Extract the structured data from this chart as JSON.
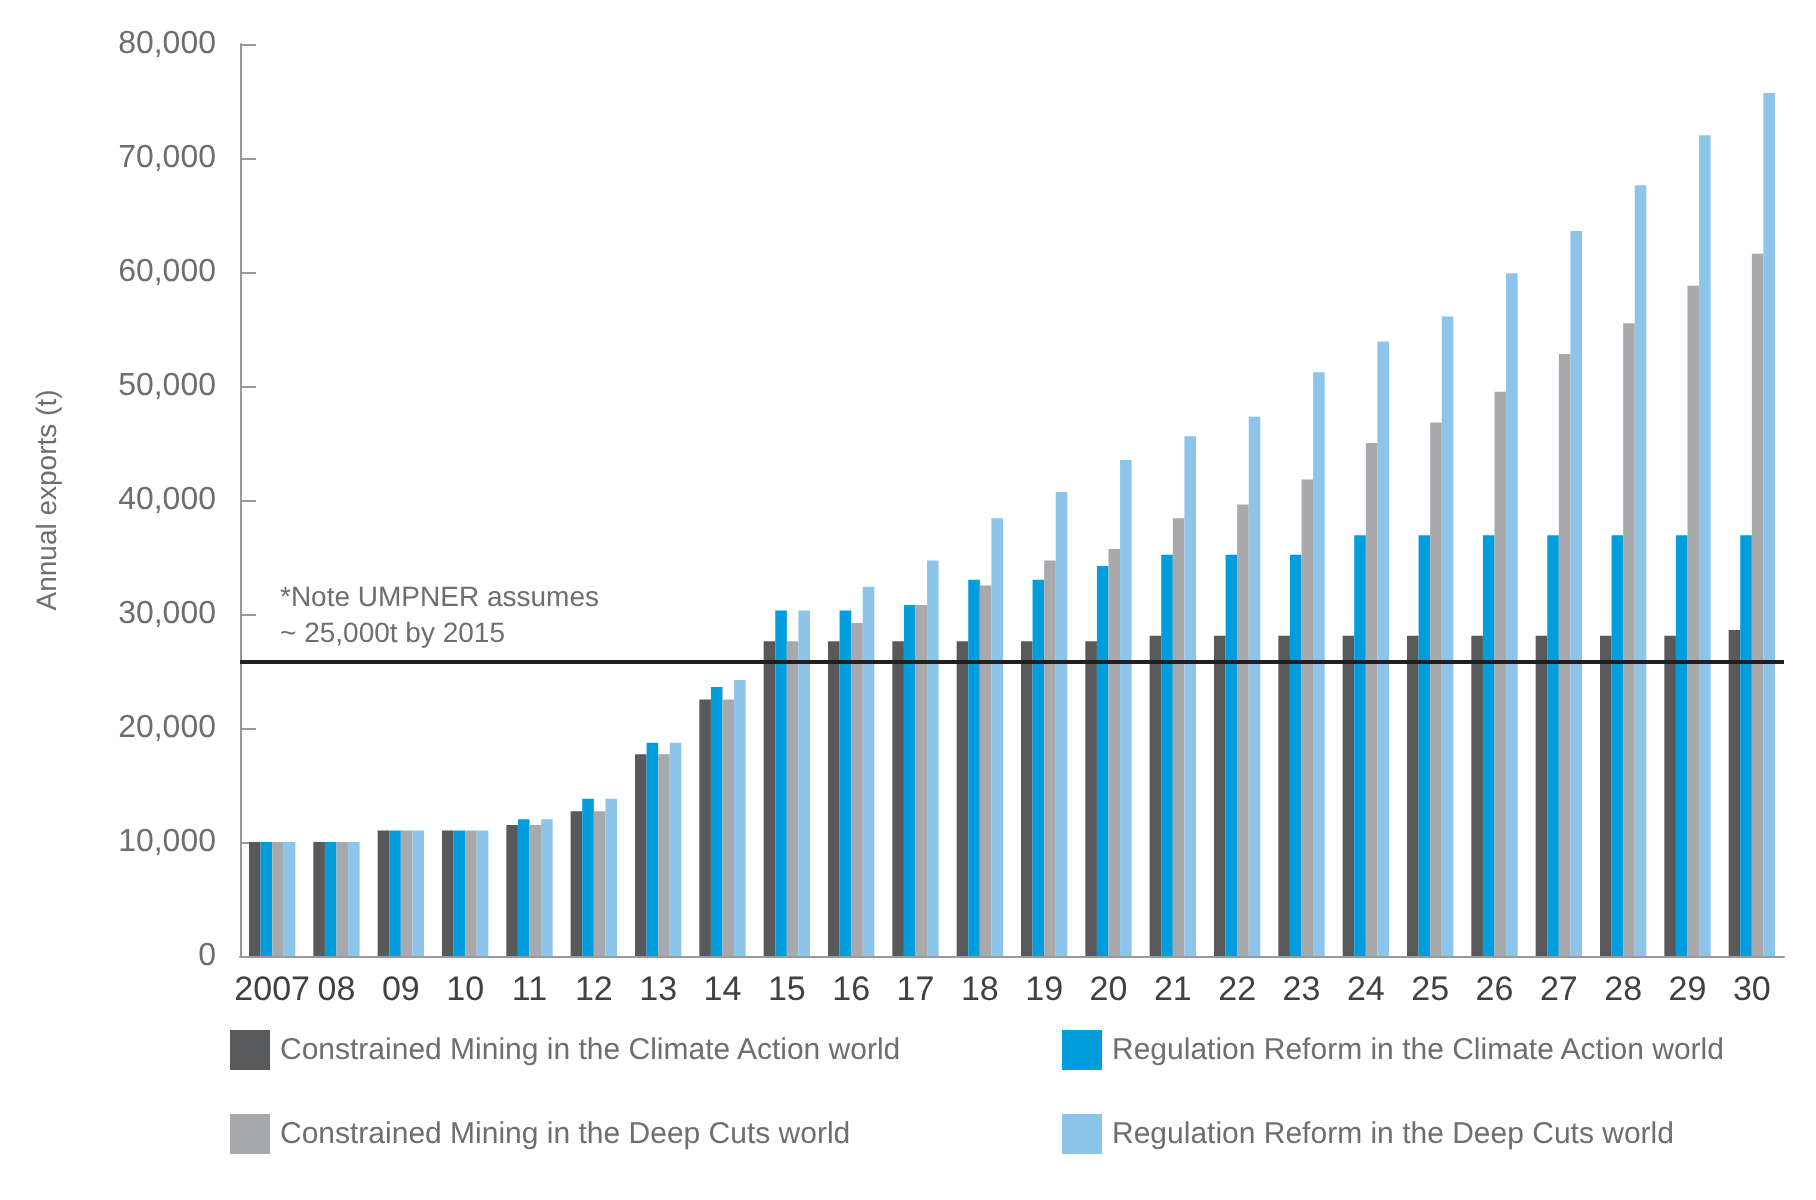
{
  "chart_data": {
    "type": "bar",
    "ylabel": "Annual exports (t)",
    "categories": [
      "2007",
      "08",
      "09",
      "10",
      "11",
      "12",
      "13",
      "14",
      "15",
      "16",
      "17",
      "18",
      "19",
      "20",
      "21",
      "22",
      "23",
      "24",
      "25",
      "26",
      "27",
      "28",
      "29",
      "30"
    ],
    "series": [
      {
        "name": "Constrained Mining in the Climate Action world",
        "color": "#58595b",
        "values": [
          10000,
          10000,
          11000,
          11000,
          11500,
          12700,
          17700,
          22500,
          27600,
          27600,
          27600,
          27600,
          27600,
          27600,
          28100,
          28100,
          28100,
          28100,
          28100,
          28100,
          28100,
          28100,
          28100,
          28600
        ]
      },
      {
        "name": "Regulation Reform in the Climate Action world",
        "color": "#009ddc",
        "values": [
          10000,
          10000,
          11000,
          11000,
          12000,
          13800,
          18700,
          23600,
          30300,
          30300,
          30800,
          33000,
          33000,
          34200,
          35200,
          35200,
          35200,
          36900,
          36900,
          36900,
          36900,
          36900,
          36900,
          36900
        ]
      },
      {
        "name": "Constrained Mining in the Deep Cuts world",
        "color": "#a7a9ac",
        "values": [
          10000,
          10000,
          11000,
          11000,
          11500,
          12700,
          17700,
          22500,
          27600,
          29200,
          30800,
          32500,
          34700,
          35700,
          38400,
          39600,
          41800,
          45000,
          46800,
          49500,
          52800,
          55500,
          58800,
          61600
        ]
      },
      {
        "name": "Regulation Reform in the Deep Cuts world",
        "color": "#8cc4ea",
        "values": [
          10000,
          10000,
          11000,
          11000,
          12000,
          13800,
          18700,
          24200,
          30300,
          32400,
          34700,
          38400,
          40700,
          43500,
          45600,
          47300,
          51200,
          53900,
          56100,
          59900,
          63600,
          67600,
          72000,
          75700
        ]
      }
    ],
    "ylim": [
      0,
      80000
    ],
    "yticks": [
      0,
      {
        "value": 10000,
        "label": "10,000"
      },
      {
        "value": 20000,
        "label": "20,000"
      },
      {
        "value": 30000,
        "label": "30,000"
      },
      {
        "value": 40000,
        "label": "40,000"
      },
      {
        "value": 50000,
        "label": "50,000"
      },
      {
        "value": 60000,
        "label": "60,000"
      },
      {
        "value": 70000,
        "label": "70,000"
      },
      {
        "value": 80000,
        "label": "80,000"
      }
    ],
    "ref_lines": [
      {
        "axis": "y",
        "value": 25800,
        "label": "*Note UMPNER assumes\n~ 25,000t by 2015",
        "color": "#231f20"
      }
    ],
    "grid": false,
    "legend": "bottom"
  }
}
